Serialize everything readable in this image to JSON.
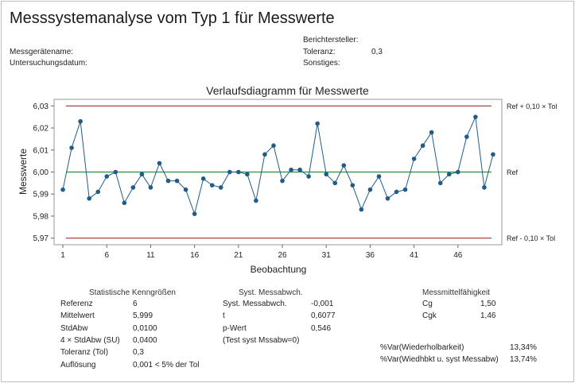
{
  "report": {
    "title": "Messsystemanalyse vom Typ 1 für Messwerte",
    "meta": {
      "berichtersteller_label": "Berichtersteller:",
      "berichtersteller_value": "",
      "messgeraet_label": "Messgerätename:",
      "messgeraet_value": "",
      "toleranz_label": "Toleranz:",
      "toleranz_value": "0,3",
      "datum_label": "Untersuchungsdatum:",
      "datum_value": "",
      "sonstiges_label": "Sonstiges:",
      "sonstiges_value": ""
    }
  },
  "chart_data": {
    "type": "line",
    "title": "Verlaufsdiagramm für Messwerte",
    "xlabel": "Beobachtung",
    "ylabel": "Messwerte",
    "x_ticks": [
      1,
      6,
      11,
      16,
      21,
      26,
      31,
      36,
      41,
      46
    ],
    "x_tick_labels": [
      "1",
      "6",
      "11",
      "16",
      "21",
      "26",
      "31",
      "36",
      "41",
      "46"
    ],
    "y_ticks": [
      5.97,
      5.98,
      5.99,
      6.0,
      6.01,
      6.02,
      6.03
    ],
    "y_tick_labels": [
      "5,97",
      "5,98",
      "5,99",
      "6,00",
      "6,01",
      "6,02",
      "6,03"
    ],
    "ylim": [
      5.967,
      6.033
    ],
    "xlim": [
      0,
      51
    ],
    "series": [
      {
        "x": [
          1,
          2,
          3,
          4,
          5,
          6,
          7,
          8,
          9,
          10,
          11,
          12,
          13,
          14,
          15,
          16,
          17,
          18,
          19,
          20,
          21,
          22,
          23,
          24,
          25,
          26,
          27,
          28,
          29,
          30,
          31,
          32,
          33,
          34,
          35,
          36,
          37,
          38,
          39,
          40,
          41,
          42,
          43,
          44,
          45,
          46,
          47,
          48,
          49,
          50
        ],
        "values": [
          5.992,
          6.011,
          6.023,
          5.988,
          5.991,
          5.998,
          6.0,
          5.986,
          5.993,
          5.999,
          5.993,
          6.004,
          5.996,
          5.996,
          5.992,
          5.981,
          5.997,
          5.994,
          5.993,
          6.0,
          6.0,
          5.999,
          5.987,
          6.008,
          6.012,
          5.996,
          6.001,
          6.001,
          5.998,
          6.022,
          5.999,
          5.995,
          6.003,
          5.994,
          5.983,
          5.992,
          5.998,
          5.988,
          5.991,
          5.992,
          6.006,
          6.012,
          6.018,
          5.995,
          5.999,
          6.0,
          6.016,
          6.025,
          5.993,
          6.008
        ],
        "color": "#1f5c8b"
      }
    ],
    "reference_lines": [
      {
        "value": 6.03,
        "label": "Ref + 0,10 × Tol",
        "color": "#a0302a"
      },
      {
        "value": 6.0,
        "label": "Ref",
        "color": "#2e8b3e"
      },
      {
        "value": 5.97,
        "label": "Ref - 0,10 × Tol",
        "color": "#a0302a"
      }
    ]
  },
  "stats": {
    "header": "Statistische Kenngrößen",
    "rows": [
      {
        "label": "Referenz",
        "value": "6"
      },
      {
        "label": "Mittelwert",
        "value": "5,999"
      },
      {
        "label": "StdAbw",
        "value": "0,0100"
      },
      {
        "label": "4 × StdAbw (SU)",
        "value": "0,0400"
      },
      {
        "label": "Toleranz (Tol)",
        "value": "0,3"
      },
      {
        "label": "Auflösung",
        "value": "0,001  < 5% der Tol"
      }
    ]
  },
  "bias": {
    "header": "Syst. Messabwch.",
    "rows": [
      {
        "label": "Syst. Messabwch.",
        "value": "-0,001"
      },
      {
        "label": "t",
        "value": "0,6077"
      },
      {
        "label": "p-Wert",
        "value": "0,546"
      },
      {
        "label": "(Test syst Mssabw=0)",
        "value": ""
      }
    ]
  },
  "capability": {
    "header": "Messmittelfähigkeit",
    "rows": [
      {
        "label": "Cg",
        "value": "1,50"
      },
      {
        "label": "Cgk",
        "value": "1,46"
      }
    ],
    "var_rows": [
      {
        "label": "%Var(Wiederholbarkeit)",
        "value": "13,34%"
      },
      {
        "label": "%Var(Wiedhbkt u. syst Messabw)",
        "value": "13,74%"
      }
    ]
  }
}
